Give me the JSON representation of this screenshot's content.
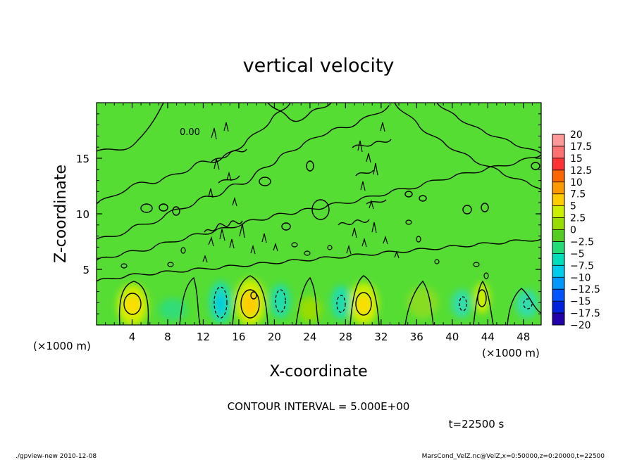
{
  "chart_data": {
    "type": "heatmap",
    "title": "vertical velocity",
    "xlabel": "X-coordinate",
    "ylabel": "Z-coordinate",
    "x_unit_left": "(×1000 m)",
    "x_unit_right": "(×1000 m)",
    "xlim": [
      0,
      50
    ],
    "ylim": [
      0,
      20
    ],
    "x_ticks": [
      {
        "value": 4,
        "label": "4"
      },
      {
        "value": 8,
        "label": "8"
      },
      {
        "value": 12,
        "label": "12"
      },
      {
        "value": 16,
        "label": "16"
      },
      {
        "value": 20,
        "label": "20"
      },
      {
        "value": 24,
        "label": "24"
      },
      {
        "value": 28,
        "label": "28"
      },
      {
        "value": 32,
        "label": "32"
      },
      {
        "value": 36,
        "label": "36"
      },
      {
        "value": 40,
        "label": "40"
      },
      {
        "value": 44,
        "label": "44"
      },
      {
        "value": 48,
        "label": "48"
      }
    ],
    "y_ticks": [
      {
        "value": 5,
        "label": "5"
      },
      {
        "value": 10,
        "label": "10"
      },
      {
        "value": 15,
        "label": "15"
      }
    ],
    "colorbar": {
      "levels": [
        {
          "label": "20",
          "color": "#ff9999"
        },
        {
          "label": "17.5",
          "color": "#ff7070"
        },
        {
          "label": "15",
          "color": "#ff3333"
        },
        {
          "label": "12.5",
          "color": "#ff6600"
        },
        {
          "label": "10",
          "color": "#ff9900"
        },
        {
          "label": "7.5",
          "color": "#ffcc00"
        },
        {
          "label": "5",
          "color": "#ccee00"
        },
        {
          "label": "2.5",
          "color": "#99dd00"
        },
        {
          "label": "0",
          "color": "#55cc22"
        },
        {
          "label": "−2.5",
          "color": "#22dd77"
        },
        {
          "label": "−5",
          "color": "#00ddbb"
        },
        {
          "label": "−7.5",
          "color": "#00ccee"
        },
        {
          "label": "−10",
          "color": "#0099ff"
        },
        {
          "label": "−12.5",
          "color": "#0055ff"
        },
        {
          "label": "−15",
          "color": "#0022dd"
        },
        {
          "label": "−17.5",
          "color": "#2200aa"
        },
        {
          "label": "−20",
          "color": "#7700aa"
        }
      ]
    },
    "field_color": "#55dd33",
    "grid": false,
    "legend": "colorbar at right",
    "contour_labels": [
      "0.00"
    ]
  },
  "contour_interval": "CONTOUR INTERVAL = 5.000E+00",
  "time_label": "t=22500 s",
  "footer": {
    "left": "./gpview-new 2010-12-08",
    "right": "MarsCond_VelZ.nc@VelZ,x=0:50000,z=0:20000,t=22500"
  }
}
